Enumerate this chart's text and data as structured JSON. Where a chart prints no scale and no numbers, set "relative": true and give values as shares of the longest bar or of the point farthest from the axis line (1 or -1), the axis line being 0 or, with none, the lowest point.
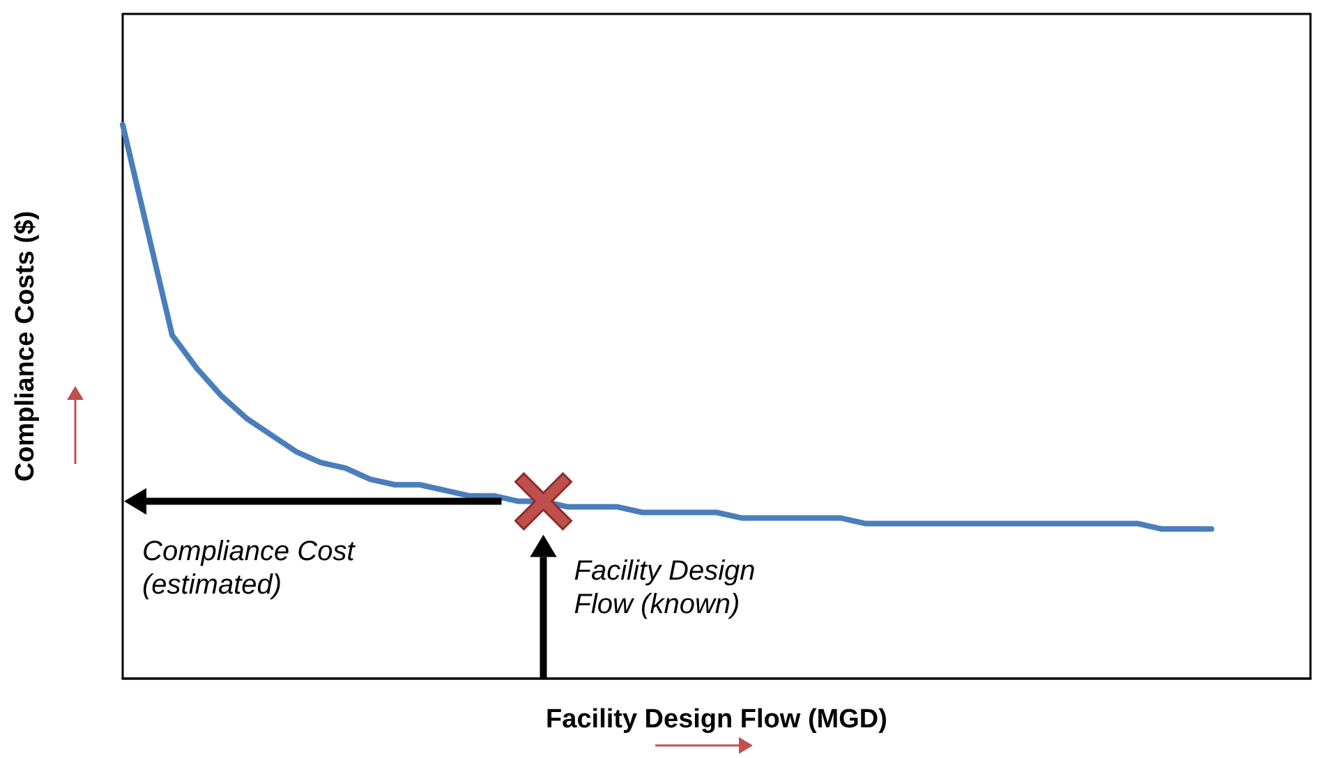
{
  "chart_data": {
    "type": "line",
    "relative": true,
    "xlabel": "Facility Design Flow (MGD)",
    "ylabel": "Compliance Costs ($)",
    "categories": [
      null,
      null,
      null,
      null,
      null,
      null,
      null,
      null,
      null,
      null,
      null,
      null,
      null,
      null,
      null,
      null,
      null,
      null,
      null,
      null,
      null,
      null,
      null,
      null,
      null,
      null,
      null,
      null,
      null,
      null,
      null,
      null,
      null,
      null,
      null,
      null,
      null,
      null,
      null,
      null,
      null,
      null,
      null,
      null,
      null,
      null,
      null,
      null,
      null
    ],
    "series": [
      {
        "color": "#4a7ebb",
        "values": [
          1.0,
          0.81,
          0.62,
          0.56,
          0.51,
          0.47,
          0.44,
          0.41,
          0.39,
          0.38,
          0.36,
          0.35,
          0.35,
          0.34,
          0.33,
          0.33,
          0.32,
          0.32,
          0.31,
          0.31,
          0.31,
          0.3,
          0.3,
          0.3,
          0.3,
          0.29,
          0.29,
          0.29,
          0.29,
          0.29,
          0.28,
          0.28,
          0.28,
          0.28,
          0.28,
          0.28,
          0.28,
          0.28,
          0.28,
          0.28,
          0.28,
          0.28,
          0.27,
          0.27,
          0.27,
          null,
          null,
          null,
          null
        ]
      }
    ],
    "annotations": [
      "Compliance Cost (estimated)",
      "Facility Design Flow (known)"
    ],
    "marker": "none",
    "line_style": "solid"
  }
}
